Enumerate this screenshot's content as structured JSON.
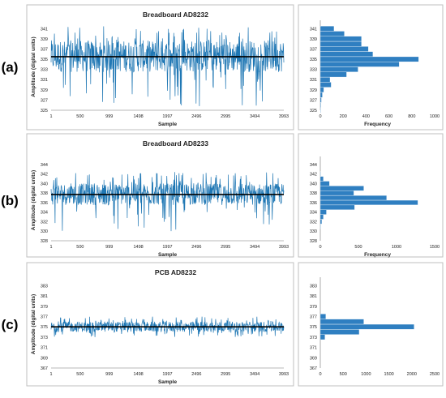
{
  "panel_labels": [
    "(a)",
    "(b)",
    "(c)"
  ],
  "colors": {
    "bar": "#2f7fc1",
    "signal": "#1f77b4",
    "mean_line": "#000000",
    "frame": "#bfbfbf",
    "text": "#222222"
  },
  "chart_data": [
    {
      "type": "line",
      "panel": "(a)",
      "title": "Breadboard AD8232",
      "xlabel": "Sample",
      "ylabel": "Amplitude (digital units)",
      "xlim": [
        1,
        3993
      ],
      "ylim": [
        325,
        342
      ],
      "x_ticks": [
        "1",
        "500",
        "999",
        "1498",
        "1997",
        "2496",
        "2995",
        "3494",
        "3993"
      ],
      "y_ticks": [
        "325",
        "327",
        "329",
        "331",
        "333",
        "335",
        "337",
        "339",
        "341"
      ],
      "signal": {
        "n": 3993,
        "center": 335.5,
        "band_low": 332.5,
        "band_high": 338.7,
        "min": 325.5,
        "max": 341.5
      },
      "mean_line": 335.5
    },
    {
      "type": "bar",
      "orientation": "horizontal",
      "panel": "(a)",
      "xlabel": "Frequency",
      "xlim": [
        0,
        1000
      ],
      "x_ticks": [
        "0",
        "200",
        "400",
        "600",
        "800",
        "1000"
      ],
      "y_ticks": [
        "325",
        "327",
        "329",
        "331",
        "333",
        "335",
        "337",
        "339",
        "341"
      ],
      "ylim": [
        325,
        342
      ],
      "categories": [
        325,
        326,
        327,
        328,
        329,
        330,
        331,
        332,
        333,
        334,
        335,
        336,
        337,
        338,
        339,
        340,
        341
      ],
      "values": [
        3,
        5,
        10,
        18,
        30,
        95,
        85,
        230,
        330,
        690,
        860,
        460,
        420,
        360,
        360,
        210,
        120
      ]
    },
    {
      "type": "line",
      "panel": "(b)",
      "title": "Breadboard AD8233",
      "xlabel": "Sample",
      "ylabel": "Amplitude (digital units)",
      "xlim": [
        1,
        3993
      ],
      "ylim": [
        328,
        345
      ],
      "x_ticks": [
        "1",
        "500",
        "999",
        "1498",
        "1997",
        "2496",
        "2995",
        "3494",
        "3993"
      ],
      "y_ticks": [
        "328",
        "330",
        "332",
        "334",
        "336",
        "338",
        "340",
        "342",
        "344"
      ],
      "signal": {
        "n": 3993,
        "center": 337.7,
        "band_low": 335.5,
        "band_high": 340.0,
        "min": 330.0,
        "max": 342.5
      },
      "mean_line": 337.7
    },
    {
      "type": "bar",
      "orientation": "horizontal",
      "panel": "(b)",
      "xlabel": "Frequency",
      "xlim": [
        0,
        1500
      ],
      "x_ticks": [
        "0",
        "500",
        "1000",
        "1500"
      ],
      "y_ticks": [
        "328",
        "330",
        "332",
        "334",
        "336",
        "338",
        "340",
        "342",
        "344"
      ],
      "ylim": [
        328,
        345
      ],
      "categories": [
        331,
        332,
        333,
        334,
        335,
        336,
        337,
        338,
        339,
        340,
        341,
        342
      ],
      "values": [
        5,
        20,
        40,
        80,
        450,
        1280,
        870,
        440,
        570,
        120,
        40,
        5
      ]
    },
    {
      "type": "line",
      "panel": "(c)",
      "title": "PCB AD8232",
      "xlabel": "Sample",
      "ylabel": "Amplitude (digital units)",
      "xlim": [
        1,
        3993
      ],
      "ylim": [
        367,
        384
      ],
      "x_ticks": [
        "1",
        "500",
        "999",
        "1498",
        "1997",
        "2496",
        "2995",
        "3494",
        "3993"
      ],
      "y_ticks": [
        "367",
        "369",
        "371",
        "373",
        "375",
        "377",
        "379",
        "381",
        "383"
      ],
      "signal": {
        "n": 3993,
        "center": 375.0,
        "band_low": 374.0,
        "band_high": 376.0,
        "min": 373.0,
        "max": 377.0
      },
      "mean_line": 375.0
    },
    {
      "type": "bar",
      "orientation": "horizontal",
      "panel": "(c)",
      "xlabel": "",
      "xlim": [
        0,
        2500
      ],
      "x_ticks": [
        "0",
        "500",
        "1000",
        "1500",
        "2000",
        "2500"
      ],
      "y_ticks": [
        "367",
        "369",
        "371",
        "373",
        "375",
        "377",
        "379",
        "381",
        "383"
      ],
      "ylim": [
        367,
        384
      ],
      "categories": [
        373,
        374,
        375,
        376,
        377
      ],
      "values": [
        100,
        850,
        2050,
        950,
        120
      ]
    }
  ]
}
